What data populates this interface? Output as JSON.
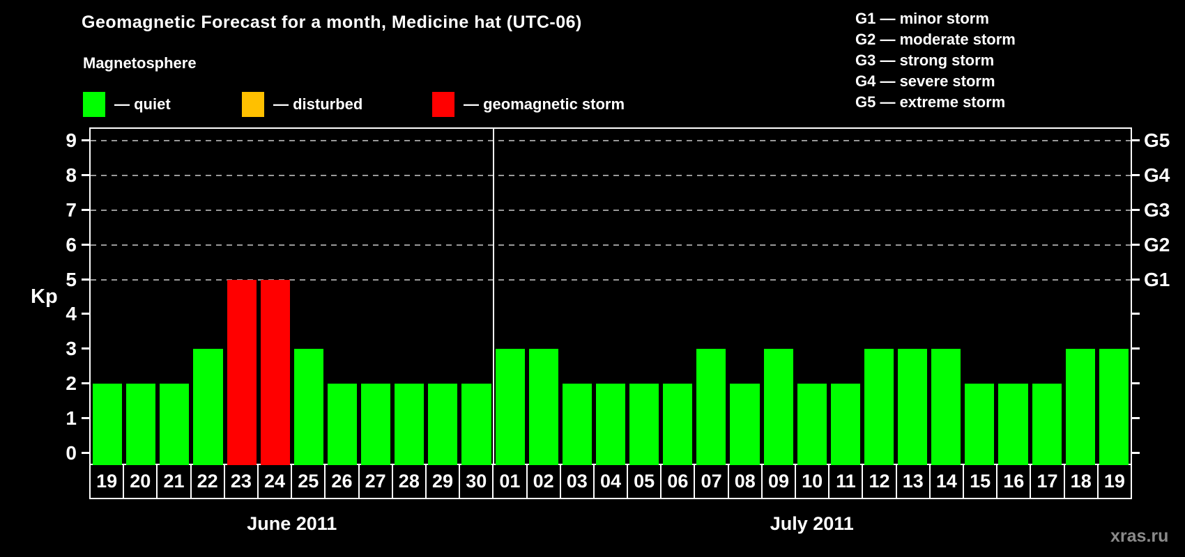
{
  "header": {
    "title": "Geomagnetic Forecast for a month, Medicine hat (UTC-06)",
    "watermark": "xras.ru"
  },
  "magnetosphere_legend": {
    "title": "Magnetosphere",
    "items": [
      {
        "name": "quiet",
        "label": "— quiet",
        "color": "#00ff00"
      },
      {
        "name": "disturbed",
        "label": "— disturbed",
        "color": "#ffc000"
      },
      {
        "name": "storm",
        "label": "— geomagnetic storm",
        "color": "#ff0000"
      }
    ]
  },
  "g_scale_legend": [
    {
      "code": "G1",
      "label": "G1 — minor storm"
    },
    {
      "code": "G2",
      "label": "G2 — moderate storm"
    },
    {
      "code": "G3",
      "label": "G3 — strong storm"
    },
    {
      "code": "G4",
      "label": "G4 — severe storm"
    },
    {
      "code": "G5",
      "label": "G5 — extreme storm"
    }
  ],
  "chart_data": {
    "type": "bar",
    "title": "Geomagnetic Forecast for a month, Medicine hat (UTC-06)",
    "ylabel": "Kp",
    "ylim": [
      0,
      9
    ],
    "yticks": [
      0,
      1,
      2,
      3,
      4,
      5,
      6,
      7,
      8,
      9
    ],
    "gridlines_at_kp": [
      5,
      6,
      7,
      8,
      9
    ],
    "grid": "dashed horizontal lines at Kp 5-9 only",
    "right_axis": [
      {
        "label": "G5",
        "kp": 9
      },
      {
        "label": "G4",
        "kp": 8
      },
      {
        "label": "G3",
        "kp": 7
      },
      {
        "label": "G2",
        "kp": 6
      },
      {
        "label": "G1",
        "kp": 5
      }
    ],
    "color_thresholds": {
      "storm_min_kp": 5,
      "disturbed_kp": 4
    },
    "colors": {
      "quiet": "#00ff00",
      "disturbed": "#ffc000",
      "storm": "#ff0000"
    },
    "months": [
      {
        "label": "June 2011",
        "days": [
          "19",
          "20",
          "21",
          "22",
          "23",
          "24",
          "25",
          "26",
          "27",
          "28",
          "29",
          "30"
        ],
        "kp_values": [
          2,
          2,
          2,
          3,
          5,
          5,
          3,
          2,
          2,
          2,
          2,
          2
        ]
      },
      {
        "label": "July 2011",
        "days": [
          "01",
          "02",
          "03",
          "04",
          "05",
          "06",
          "07",
          "08",
          "09",
          "10",
          "11",
          "12",
          "13",
          "14",
          "15",
          "16",
          "17",
          "18",
          "19"
        ],
        "kp_values": [
          3,
          3,
          2,
          2,
          2,
          2,
          3,
          2,
          3,
          2,
          2,
          3,
          3,
          3,
          2,
          2,
          2,
          3,
          3
        ]
      }
    ]
  }
}
